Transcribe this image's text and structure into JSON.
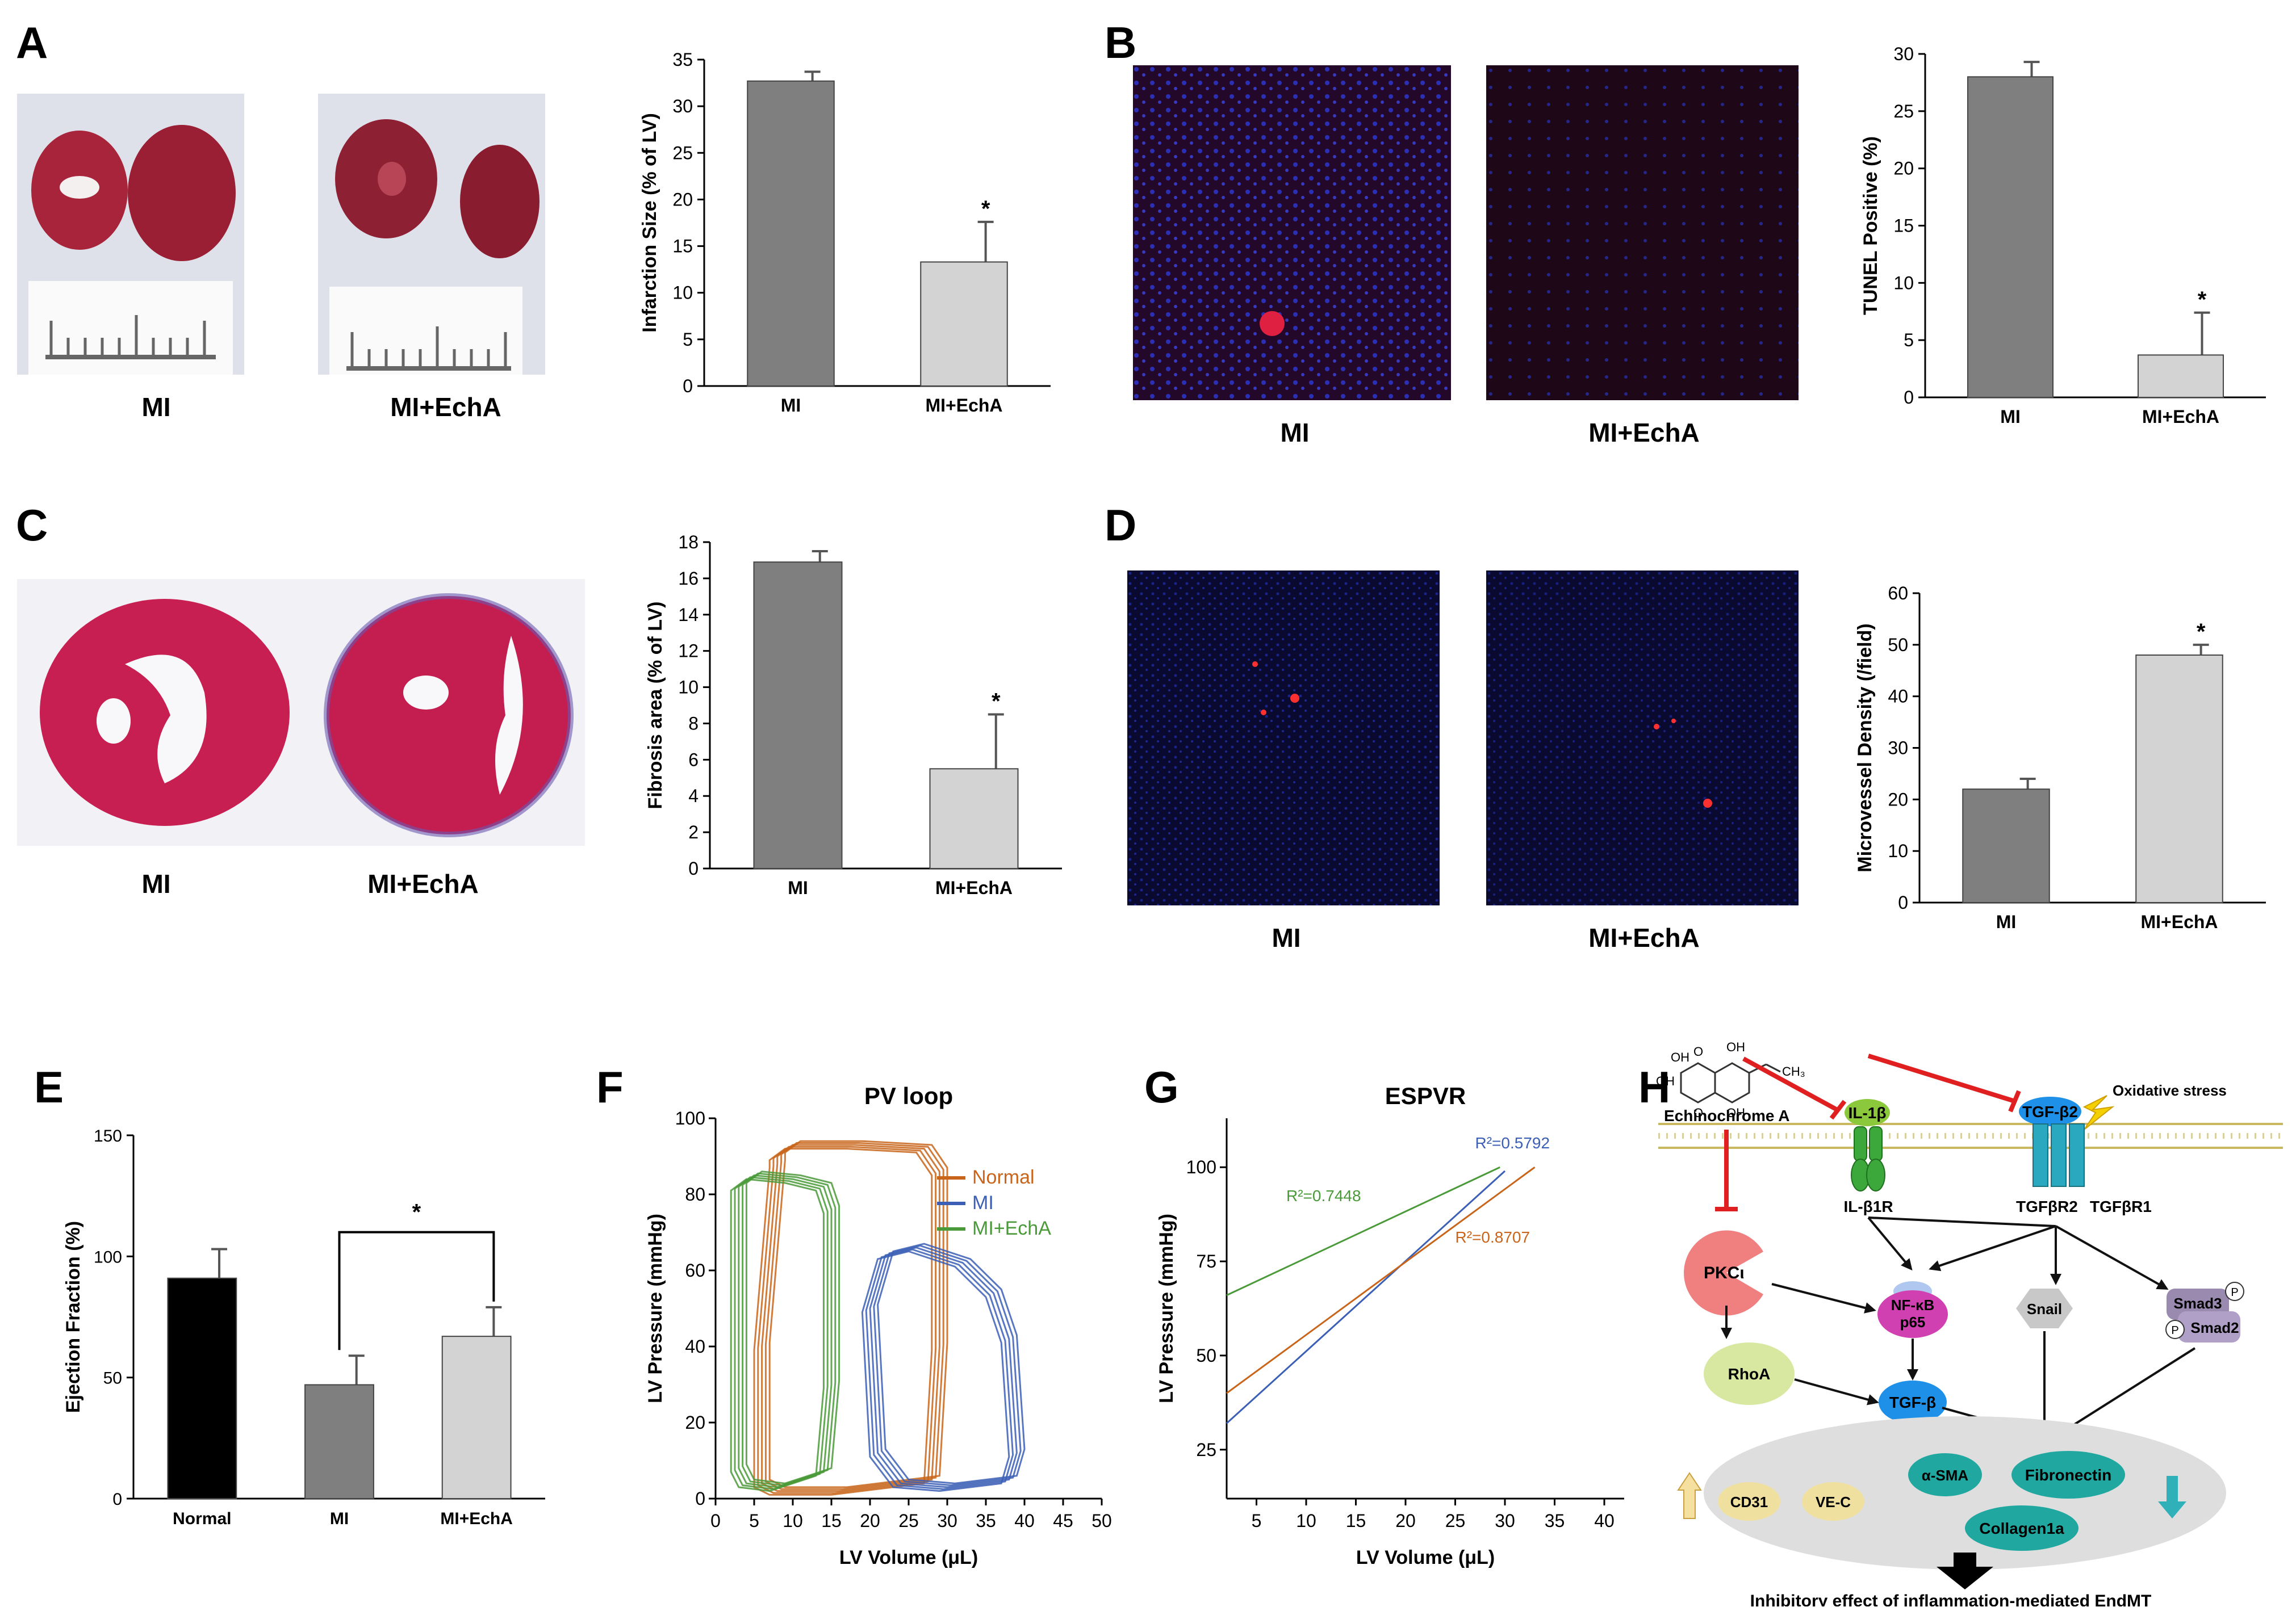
{
  "panel_labels": {
    "A": "A",
    "B": "B",
    "C": "C",
    "D": "D",
    "E": "E",
    "F": "F",
    "G": "G",
    "H": "H"
  },
  "photo_captions": {
    "a_left": "MI",
    "a_right": "MI+EchA",
    "b_left": "MI",
    "b_right": "MI+EchA",
    "c_left": "MI",
    "c_right": "MI+EchA",
    "d_left": "MI",
    "d_right": "MI+EchA"
  },
  "colors": {
    "dark_bar": "#7f7f7f",
    "light_bar": "#d3d3d3",
    "black_bar": "#000000",
    "normal": "#c8651a",
    "mi": "#3b5fb5",
    "echa": "#4a9a3a",
    "inhibit": "#e02020"
  },
  "chart_data": [
    {
      "id": "A",
      "type": "bar",
      "ylabel": "Infarction Size (% of LV)",
      "ylim": [
        0,
        35
      ],
      "yticks": [
        0,
        5,
        10,
        15,
        20,
        25,
        30,
        35
      ],
      "categories": [
        "MI",
        "MI+EchA"
      ],
      "values": [
        32.7,
        13.3
      ],
      "errors": [
        1.0,
        4.3
      ],
      "stars": [
        "",
        "*"
      ]
    },
    {
      "id": "B",
      "type": "bar",
      "ylabel": "TUNEL Positive (%)",
      "ylim": [
        0,
        30
      ],
      "yticks": [
        0,
        5,
        10,
        15,
        20,
        25,
        30
      ],
      "categories": [
        "MI",
        "MI+EchA"
      ],
      "values": [
        28.0,
        3.7
      ],
      "errors": [
        1.3,
        3.7
      ],
      "stars": [
        "",
        "*"
      ]
    },
    {
      "id": "C",
      "type": "bar",
      "ylabel": "Fibrosis area (% of LV)",
      "ylim": [
        0,
        18
      ],
      "yticks": [
        0,
        2,
        4,
        6,
        8,
        10,
        12,
        14,
        16,
        18
      ],
      "categories": [
        "MI",
        "MI+EchA"
      ],
      "values": [
        16.9,
        5.5
      ],
      "errors": [
        0.6,
        3.0
      ],
      "stars": [
        "",
        "*"
      ]
    },
    {
      "id": "D",
      "type": "bar",
      "ylabel": "Microvessel Density (/field)",
      "ylim": [
        0,
        60
      ],
      "yticks": [
        0,
        10,
        20,
        30,
        40,
        50,
        60
      ],
      "categories": [
        "MI",
        "MI+EchA"
      ],
      "values": [
        22,
        48
      ],
      "errors": [
        2,
        2
      ],
      "stars": [
        "",
        "*"
      ]
    },
    {
      "id": "E",
      "type": "bar",
      "ylabel": "Ejection Fraction (%)",
      "ylim": [
        0,
        150
      ],
      "yticks": [
        0,
        50,
        100,
        150
      ],
      "categories": [
        "Normal",
        "MI",
        "MI+EchA"
      ],
      "values": [
        91,
        47,
        67
      ],
      "errors": [
        12,
        12,
        12
      ],
      "bracket_star": "*"
    },
    {
      "id": "F",
      "type": "line",
      "title": "PV loop",
      "xlabel": "LV Volume (μL)",
      "ylabel": "LV Pressure (mmHg)",
      "xlim": [
        0,
        50
      ],
      "ylim": [
        0,
        100
      ],
      "xticks": [
        0,
        5,
        10,
        15,
        20,
        25,
        30,
        35,
        40,
        45,
        50
      ],
      "yticks": [
        0,
        20,
        40,
        60,
        80,
        100
      ],
      "legend": [
        "Normal",
        "MI",
        "MI+EchA"
      ],
      "series": [
        {
          "name": "Normal",
          "x": [
            8,
            10,
            18,
            27,
            29,
            29,
            28,
            16,
            8,
            6,
            6,
            8
          ],
          "y": [
            90,
            93,
            93,
            92,
            86,
            40,
            5,
            2,
            2,
            4,
            40,
            88
          ]
        },
        {
          "name": "MI",
          "x": [
            22,
            26,
            32,
            36,
            38,
            39,
            38,
            30,
            24,
            21,
            20,
            22
          ],
          "y": [
            64,
            66,
            62,
            54,
            42,
            12,
            5,
            3,
            4,
            12,
            50,
            64
          ]
        },
        {
          "name": "MI+EchA",
          "x": [
            3,
            5,
            10,
            14,
            15,
            15,
            14,
            8,
            4,
            3,
            3,
            3
          ],
          "y": [
            82,
            85,
            84,
            82,
            76,
            30,
            7,
            3,
            4,
            8,
            40,
            80
          ]
        }
      ]
    },
    {
      "id": "G",
      "type": "line",
      "title": "ESPVR",
      "xlabel": "LV Volume (μL)",
      "ylabel": "LV Pressure (mmHg)",
      "xlim": [
        2,
        42
      ],
      "ylim": [
        12,
        113
      ],
      "xticks": [
        5,
        10,
        15,
        20,
        25,
        30,
        35,
        40
      ],
      "yticks": [
        25,
        50,
        75,
        100
      ],
      "series": [
        {
          "name": "MI+EchA",
          "x": [
            2,
            29.5
          ],
          "y": [
            66,
            100
          ],
          "r2": "R²=0.7448"
        },
        {
          "name": "MI",
          "x": [
            2,
            30
          ],
          "y": [
            32,
            99
          ],
          "r2": "R²=0.5792"
        },
        {
          "name": "Normal",
          "x": [
            2,
            33
          ],
          "y": [
            40,
            100
          ],
          "r2": "R²=0.8707"
        }
      ]
    }
  ],
  "pathway": {
    "compound": "Echinochrome A",
    "oh1": "OH",
    "oh2": "OH",
    "oh3": "OH",
    "oh4": "OH",
    "o1": "O",
    "o2": "O",
    "ch3": "CH₃",
    "il1b": "IL-1β",
    "il1r": "IL-β1R",
    "tgfb2": "TGF-β2",
    "oxidative": "Oxidative stress",
    "tgfbr2": "TGFβR2",
    "tgfbr1": "TGFβR1",
    "pkci": "PKCι",
    "nfkb": "NF-κB",
    "p65": "p65",
    "snail": "Snail",
    "smad3": "Smad3",
    "smad2": "Smad2",
    "p": "P",
    "rhoa": "RhoA",
    "tgfb": "TGF-β",
    "cd31": "CD31",
    "vec": "VE-C",
    "asma": "α-SMA",
    "fibronectin": "Fibronectin",
    "collagen": "Collagen1a",
    "footer": "Inhibitory effect of inflammation-mediated EndMT"
  }
}
